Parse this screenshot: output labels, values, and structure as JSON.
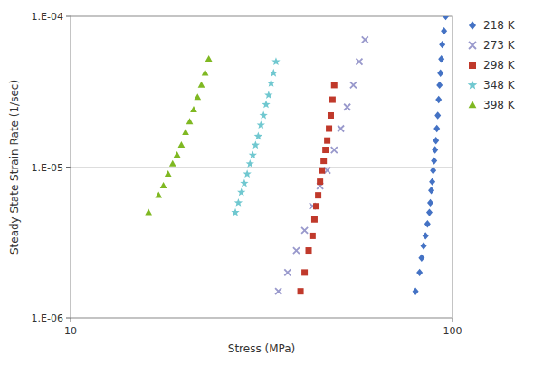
{
  "chart_data": {
    "type": "scatter",
    "xlabel": "Stress (MPa)",
    "ylabel": "Steady State Strain Rate (1/sec)",
    "log": true,
    "grid": true,
    "legend": "right",
    "xlim": [
      10,
      100
    ],
    "ylim": [
      1e-06,
      0.0001
    ],
    "xticks": [
      10,
      100
    ],
    "yticks": [
      {
        "value": 1e-06,
        "label": "1.E-06"
      },
      {
        "value": 1e-05,
        "label": "1.E-05"
      },
      {
        "value": 0.0001,
        "label": "1.E-04"
      }
    ],
    "series": [
      {
        "name": "218 K",
        "color": "#4472C4",
        "marker": "diamond",
        "x": [
          80,
          82,
          83,
          84,
          85,
          86,
          87,
          87.5,
          88,
          88.5,
          89,
          89.5,
          90,
          90.5,
          91,
          91.5,
          92,
          92.5,
          93,
          93.5,
          94,
          95,
          96
        ],
        "values": [
          1.5e-06,
          2e-06,
          2.5e-06,
          3e-06,
          3.5e-06,
          4.2e-06,
          5e-06,
          5.8e-06,
          7e-06,
          8e-06,
          9.5e-06,
          1.1e-05,
          1.3e-05,
          1.5e-05,
          1.8e-05,
          2.2e-05,
          2.8e-05,
          3.5e-05,
          4.2e-05,
          5.2e-05,
          6.5e-05,
          8e-05,
          0.0001
        ]
      },
      {
        "name": "273 K",
        "color": "#9999CC",
        "marker": "x",
        "x": [
          35,
          37,
          39,
          41,
          43,
          45,
          47,
          49,
          51,
          53,
          55,
          57,
          59
        ],
        "values": [
          1.5e-06,
          2e-06,
          2.8e-06,
          3.8e-06,
          5.5e-06,
          7.5e-06,
          9.5e-06,
          1.3e-05,
          1.8e-05,
          2.5e-05,
          3.5e-05,
          5e-05,
          7e-05
        ]
      },
      {
        "name": "298 K",
        "color": "#C0392B",
        "marker": "square",
        "x": [
          40,
          41,
          42,
          43,
          43.5,
          44,
          44.5,
          45,
          45.5,
          46,
          46.5,
          47,
          47.5,
          48,
          48.5,
          49
        ],
        "values": [
          1.5e-06,
          2e-06,
          2.8e-06,
          3.5e-06,
          4.5e-06,
          5.5e-06,
          6.5e-06,
          8e-06,
          9.5e-06,
          1.1e-05,
          1.3e-05,
          1.5e-05,
          1.8e-05,
          2.2e-05,
          2.8e-05,
          3.5e-05
        ]
      },
      {
        "name": "348 K",
        "color": "#70C8D0",
        "marker": "star",
        "x": [
          27,
          27.5,
          28,
          28.5,
          29,
          29.5,
          30,
          30.5,
          31,
          31.5,
          32,
          32.5,
          33,
          33.5,
          34,
          34.5
        ],
        "values": [
          5e-06,
          5.8e-06,
          6.8e-06,
          7.8e-06,
          9e-06,
          1.05e-05,
          1.2e-05,
          1.4e-05,
          1.6e-05,
          1.9e-05,
          2.2e-05,
          2.6e-05,
          3e-05,
          3.6e-05,
          4.2e-05,
          5e-05
        ]
      },
      {
        "name": "398 K",
        "color": "#7FB822",
        "marker": "triangle",
        "x": [
          16,
          17,
          17.5,
          18,
          18.5,
          19,
          19.5,
          20,
          20.5,
          21,
          21.5,
          22,
          22.5,
          23
        ],
        "values": [
          5e-06,
          6.5e-06,
          7.5e-06,
          9e-06,
          1.05e-05,
          1.2e-05,
          1.4e-05,
          1.7e-05,
          2e-05,
          2.4e-05,
          2.9e-05,
          3.5e-05,
          4.2e-05,
          5.2e-05
        ]
      }
    ]
  }
}
